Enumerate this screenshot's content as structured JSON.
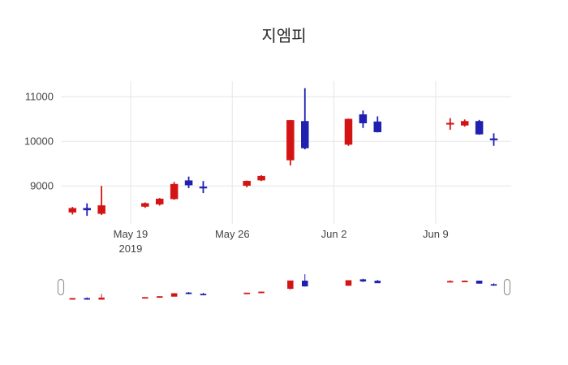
{
  "title": "지엠피",
  "colors": {
    "increasing": "#d41414",
    "decreasing": "#1f1fb0",
    "grid": "#e6e6e6",
    "axis_text": "#444444",
    "handle_border": "#999999",
    "handle_fill": "#ffffff",
    "title_text": "#2a2a2a"
  },
  "chart_data": {
    "type": "candlestick",
    "title": "지엠피",
    "xlabel": "",
    "ylabel": "",
    "legend": "off",
    "grid": "on",
    "rangeslider": "on",
    "x_domain_days": [
      -0.8,
      30.2
    ],
    "y_domain": [
      8150,
      11350
    ],
    "slider_y_domain": [
      8300,
      11200
    ],
    "y_ticks": [
      9000,
      10000,
      11000
    ],
    "x_ticks": [
      {
        "day": 4,
        "label": "May 19",
        "sublabel": "2019"
      },
      {
        "day": 11,
        "label": "May 26",
        "sublabel": ""
      },
      {
        "day": 18,
        "label": "Jun 2",
        "sublabel": ""
      },
      {
        "day": 25,
        "label": "Jun 9",
        "sublabel": ""
      }
    ],
    "candles": [
      {
        "day": 0,
        "open": 8410,
        "high": 8530,
        "low": 8360,
        "close": 8500
      },
      {
        "day": 1,
        "open": 8500,
        "high": 8610,
        "low": 8330,
        "close": 8460
      },
      {
        "day": 2,
        "open": 8380,
        "high": 9000,
        "low": 8350,
        "close": 8560
      },
      {
        "day": 5,
        "open": 8540,
        "high": 8630,
        "low": 8510,
        "close": 8610
      },
      {
        "day": 6,
        "open": 8590,
        "high": 8730,
        "low": 8560,
        "close": 8710
      },
      {
        "day": 7,
        "open": 8710,
        "high": 9090,
        "low": 8690,
        "close": 9040
      },
      {
        "day": 8,
        "open": 9120,
        "high": 9210,
        "low": 8950,
        "close": 9020
      },
      {
        "day": 9,
        "open": 8980,
        "high": 9110,
        "low": 8840,
        "close": 8950
      },
      {
        "day": 12,
        "open": 9010,
        "high": 9120,
        "low": 8970,
        "close": 9110
      },
      {
        "day": 13,
        "open": 9130,
        "high": 9240,
        "low": 9110,
        "close": 9220
      },
      {
        "day": 15,
        "open": 9580,
        "high": 10480,
        "low": 9460,
        "close": 10470
      },
      {
        "day": 16,
        "open": 10450,
        "high": 11190,
        "low": 9820,
        "close": 9850
      },
      {
        "day": 19,
        "open": 9930,
        "high": 10510,
        "low": 9900,
        "close": 10500
      },
      {
        "day": 20,
        "open": 10600,
        "high": 10690,
        "low": 10300,
        "close": 10410
      },
      {
        "day": 21,
        "open": 10440,
        "high": 10560,
        "low": 10200,
        "close": 10210
      },
      {
        "day": 26,
        "open": 10380,
        "high": 10520,
        "low": 10260,
        "close": 10410
      },
      {
        "day": 27,
        "open": 10360,
        "high": 10490,
        "low": 10330,
        "close": 10450
      },
      {
        "day": 28,
        "open": 10450,
        "high": 10480,
        "low": 10150,
        "close": 10160
      },
      {
        "day": 29,
        "open": 10060,
        "high": 10180,
        "low": 9900,
        "close": 10030
      }
    ]
  }
}
